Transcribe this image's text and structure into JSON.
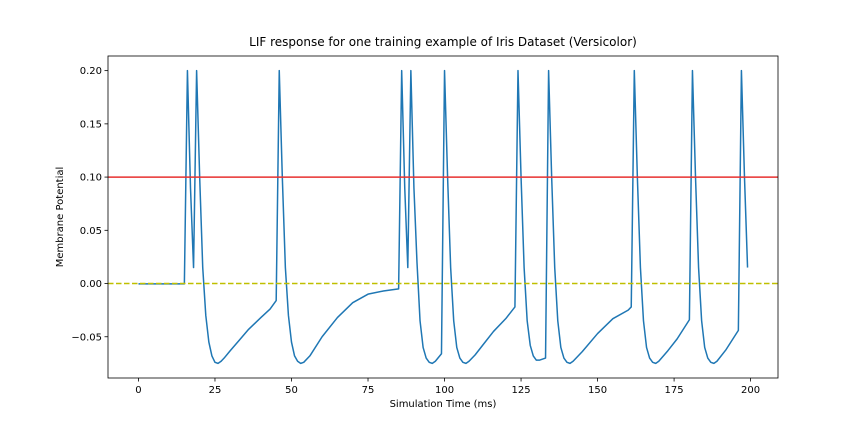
{
  "chart_data": {
    "type": "line",
    "title": "LIF response for one training example of Iris Dataset (Versicolor)",
    "xlabel": "Simulation Time (ms)",
    "ylabel": "Membrane Potential",
    "color": "#1f77b4",
    "x": [
      0,
      15,
      16,
      17,
      18,
      19,
      20,
      21,
      22,
      23,
      24,
      25,
      26,
      27,
      28,
      30,
      33,
      36,
      40,
      43,
      45,
      46,
      47,
      48,
      49,
      50,
      51,
      52,
      53,
      54,
      56,
      60,
      65,
      70,
      75,
      80,
      85,
      86,
      87,
      88,
      89,
      90,
      91,
      92,
      93,
      94,
      95,
      96,
      97,
      99,
      100,
      101,
      102,
      103,
      104,
      105,
      106,
      107,
      108,
      110,
      113,
      116,
      120,
      123,
      124,
      125,
      126,
      127,
      128,
      129,
      130,
      131,
      133,
      134,
      135,
      136,
      137,
      138,
      139,
      140,
      141,
      142,
      145,
      150,
      155,
      160,
      161,
      162,
      163,
      164,
      165,
      166,
      167,
      168,
      169,
      170,
      173,
      176,
      180,
      181,
      182,
      183,
      184,
      185,
      186,
      187,
      188,
      189,
      192,
      196,
      197,
      198,
      199
    ],
    "values": [
      -0.0003,
      -0.0003,
      0.2,
      0.09,
      0.015,
      0.2,
      0.1,
      0.015,
      -0.03,
      -0.055,
      -0.068,
      -0.074,
      -0.075,
      -0.073,
      -0.07,
      -0.063,
      -0.053,
      -0.043,
      -0.032,
      -0.024,
      -0.016,
      0.2,
      0.1,
      0.015,
      -0.03,
      -0.055,
      -0.068,
      -0.073,
      -0.075,
      -0.074,
      -0.068,
      -0.05,
      -0.032,
      -0.018,
      -0.01,
      -0.007,
      -0.005,
      0.2,
      0.09,
      0.015,
      0.2,
      0.09,
      0.02,
      -0.035,
      -0.06,
      -0.07,
      -0.074,
      -0.075,
      -0.073,
      -0.066,
      0.2,
      0.1,
      0.015,
      -0.035,
      -0.06,
      -0.07,
      -0.074,
      -0.075,
      -0.073,
      -0.067,
      -0.056,
      -0.045,
      -0.033,
      -0.022,
      0.2,
      0.1,
      0.015,
      -0.035,
      -0.058,
      -0.068,
      -0.072,
      -0.072,
      -0.07,
      0.2,
      0.1,
      0.015,
      -0.035,
      -0.06,
      -0.07,
      -0.074,
      -0.075,
      -0.073,
      -0.064,
      -0.047,
      -0.033,
      -0.025,
      -0.022,
      0.2,
      0.1,
      0.015,
      -0.035,
      -0.06,
      -0.07,
      -0.074,
      -0.075,
      -0.073,
      -0.063,
      -0.052,
      -0.034,
      0.2,
      0.1,
      0.015,
      -0.035,
      -0.06,
      -0.07,
      -0.074,
      -0.075,
      -0.073,
      -0.062,
      -0.044,
      0.2,
      0.1,
      0.015
    ],
    "hlines": [
      {
        "value": 0.1,
        "color": "#e8312f",
        "style": "solid"
      },
      {
        "value": 0,
        "color": "#bfbf00",
        "style": "dashed"
      }
    ],
    "xlim": [
      -9.95,
      208.95
    ],
    "ylim": [
      -0.08875,
      0.21375
    ],
    "xticks": [
      0,
      25,
      50,
      75,
      100,
      125,
      150,
      175,
      200
    ],
    "yticks": [
      {
        "value": -0.05,
        "label": "−0.05"
      },
      {
        "value": 0,
        "label": "0.00"
      },
      {
        "value": 0.05,
        "label": "0.05"
      },
      {
        "value": 0.1,
        "label": "0.10"
      },
      0.15,
      {
        "value": 0.2,
        "label": "0.20"
      }
    ]
  }
}
